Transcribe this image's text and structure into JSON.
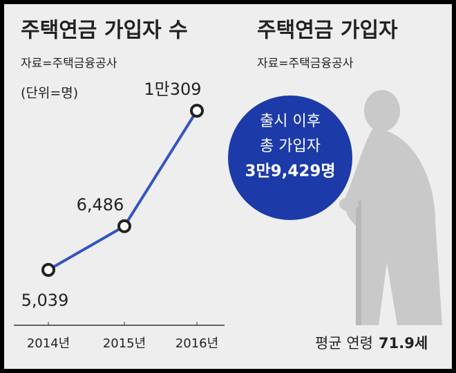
{
  "chart_data": {
    "type": "line",
    "title": "주택연금 가입자 수",
    "source": "자료=주택금융공사",
    "unit": "(단위=명)",
    "categories": [
      "2014년",
      "2015년",
      "2016년"
    ],
    "values": [
      5039,
      6486,
      10309
    ],
    "value_labels": [
      "5,039",
      "6,486",
      "1만309"
    ],
    "color": "#3553c4"
  },
  "info_panel": {
    "title": "주택연금 가입자",
    "source": "자료=주택금융공사",
    "circle_lines": [
      "출시 이후",
      "총 가입자",
      "3만9,429명"
    ],
    "average_age_label": "평균 연령",
    "average_age_value": "71.9세"
  }
}
